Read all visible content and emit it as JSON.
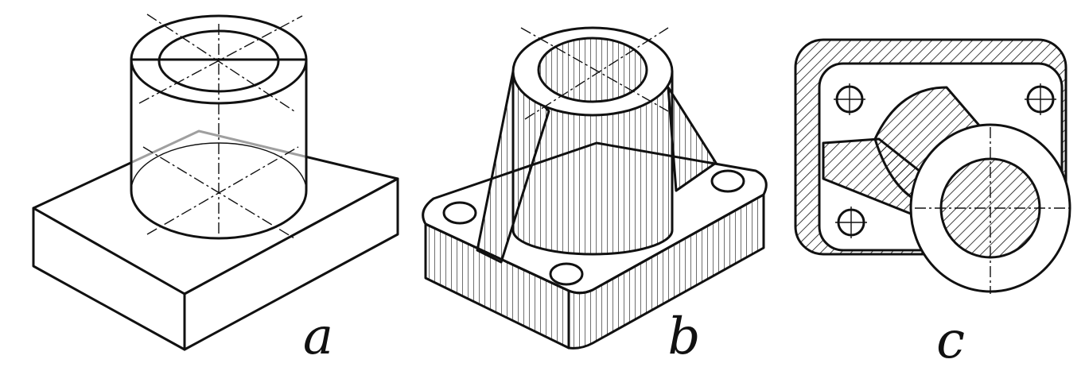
{
  "figures": [
    {
      "label": "a"
    },
    {
      "label": "b"
    },
    {
      "label": "c"
    }
  ]
}
